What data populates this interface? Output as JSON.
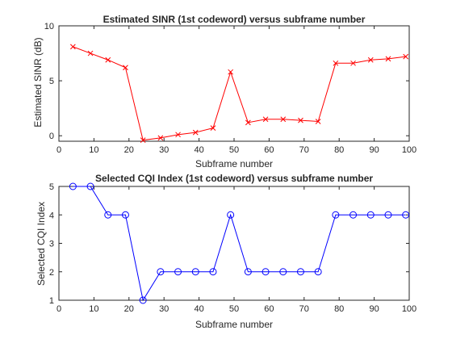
{
  "colors": {
    "series1": "#ff0000",
    "series2": "#0000ff",
    "axis": "#262626",
    "background": "#ffffff"
  },
  "chart_data": [
    {
      "type": "line",
      "title": "Estimated SINR (1st codeword) versus subframe number",
      "xlabel": "Subframe number",
      "ylabel": "Estimated SINR (dB)",
      "xlim": [
        0,
        100
      ],
      "ylim": [
        -0.5,
        10
      ],
      "xticks": [
        0,
        10,
        20,
        30,
        40,
        50,
        60,
        70,
        80,
        90,
        100
      ],
      "yticks": [
        0,
        5,
        10
      ],
      "grid": false,
      "marker": "x",
      "x": [
        4,
        9,
        14,
        19,
        24,
        29,
        34,
        39,
        44,
        49,
        54,
        59,
        64,
        69,
        74,
        79,
        84,
        89,
        94,
        99
      ],
      "y": [
        8.1,
        7.5,
        6.9,
        6.2,
        -0.4,
        -0.2,
        0.1,
        0.3,
        0.7,
        5.8,
        1.2,
        1.5,
        1.5,
        1.4,
        1.3,
        6.6,
        6.6,
        6.9,
        7.0,
        7.2
      ]
    },
    {
      "type": "line",
      "title": "Selected CQI Index (1st codeword) versus subframe number",
      "xlabel": "Subframe number",
      "ylabel": "Selected CQI Index",
      "xlim": [
        0,
        100
      ],
      "ylim": [
        1,
        5
      ],
      "xticks": [
        0,
        10,
        20,
        30,
        40,
        50,
        60,
        70,
        80,
        90,
        100
      ],
      "yticks": [
        1,
        2,
        3,
        4,
        5
      ],
      "grid": false,
      "marker": "o",
      "x": [
        4,
        9,
        14,
        19,
        24,
        29,
        34,
        39,
        44,
        49,
        54,
        59,
        64,
        69,
        74,
        79,
        84,
        89,
        94,
        99
      ],
      "y": [
        5,
        5,
        4,
        4,
        1,
        2,
        2,
        2,
        2,
        4,
        2,
        2,
        2,
        2,
        2,
        4,
        4,
        4,
        4,
        4
      ]
    }
  ]
}
